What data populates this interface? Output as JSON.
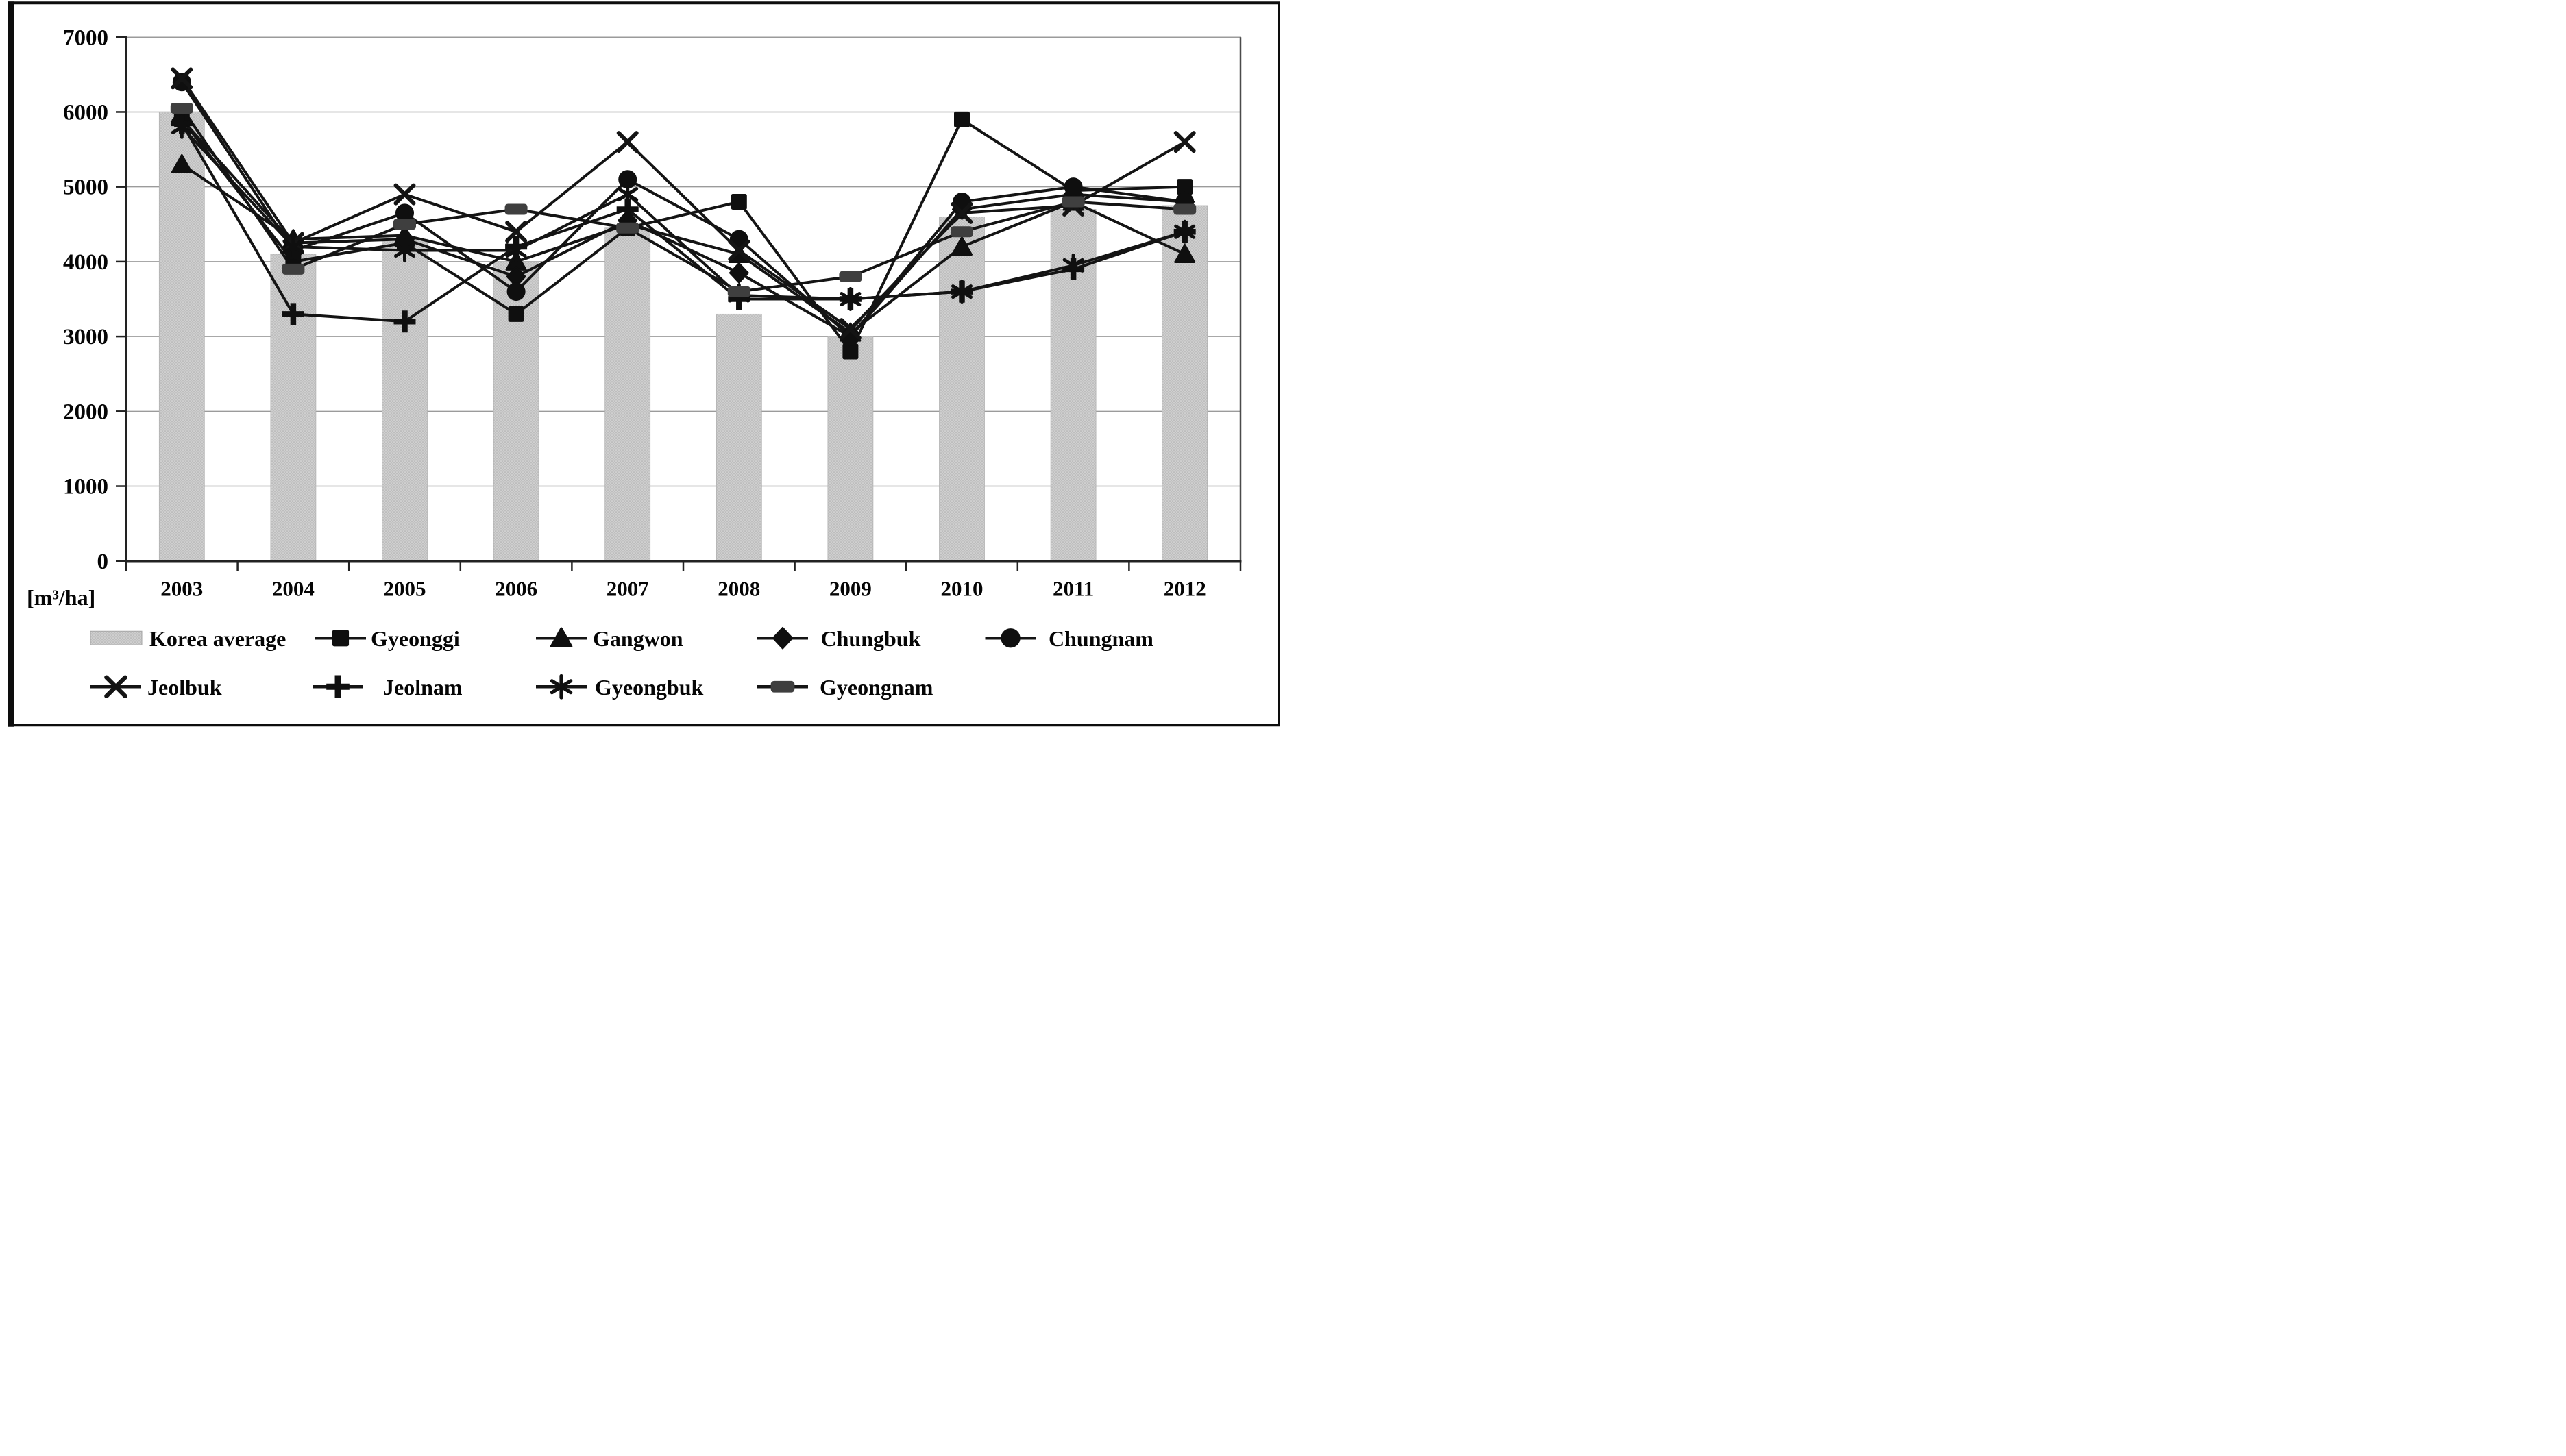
{
  "chart_data": {
    "type": "bar+line",
    "title": "",
    "unit_label": "[m³/ha]",
    "categories": [
      "2003",
      "2004",
      "2005",
      "2006",
      "2007",
      "2008",
      "2009",
      "2010",
      "2011",
      "2012"
    ],
    "ylim": [
      0,
      7000
    ],
    "yticks": [
      0,
      1000,
      2000,
      3000,
      4000,
      5000,
      6000,
      7000
    ],
    "grid": true,
    "legend_position": "bottom",
    "bar_series": {
      "name": "Korea average",
      "values": [
        6000,
        4100,
        4300,
        4000,
        4450,
        3300,
        3000,
        4600,
        4700,
        4750
      ]
    },
    "line_series": [
      {
        "name": "Gyeonggi",
        "marker": "square",
        "values": [
          5900,
          4000,
          4250,
          3300,
          4450,
          4800,
          2800,
          5900,
          4950,
          5000
        ]
      },
      {
        "name": "Gangwon",
        "marker": "triangle",
        "values": [
          5300,
          4300,
          4350,
          4000,
          4500,
          4100,
          3050,
          4200,
          4800,
          4100
        ]
      },
      {
        "name": "Chungbuk",
        "marker": "diamond",
        "values": [
          5900,
          4250,
          4300,
          3800,
          4550,
          3850,
          3000,
          4700,
          4900,
          4800
        ]
      },
      {
        "name": "Chungnam",
        "marker": "circle",
        "values": [
          6400,
          4150,
          4650,
          3600,
          5100,
          4300,
          3000,
          4800,
          5000,
          4800
        ]
      },
      {
        "name": "Jeolbuk",
        "marker": "x",
        "values": [
          6450,
          4250,
          4900,
          4400,
          5600,
          4150,
          3100,
          4650,
          4750,
          5600
        ]
      },
      {
        "name": "Jeolnam",
        "marker": "plus",
        "values": [
          5850,
          3300,
          3200,
          4200,
          4700,
          3500,
          3500,
          3600,
          3900,
          4400
        ]
      },
      {
        "name": "Gyeongbuk",
        "marker": "asterisk",
        "values": [
          5800,
          4200,
          4150,
          4150,
          4900,
          3550,
          3500,
          3600,
          3950,
          4400
        ]
      },
      {
        "name": "Gyeongnam",
        "marker": "dash",
        "values": [
          6050,
          3900,
          4500,
          4700,
          4450,
          3600,
          3800,
          4400,
          4800,
          4700
        ]
      }
    ],
    "legend_rows": [
      [
        "Korea average",
        "Gyeonggi",
        "Gangwon",
        "Chungbuk",
        "Chungnam"
      ],
      [
        "Jeolbuk",
        "Jeolnam",
        "Gyeongbuk",
        "Gyeongnam"
      ]
    ]
  },
  "colors": {
    "line": "#141414",
    "marker_fill": "#0f0f0f",
    "dash_marker_fill": "#3f3f3f",
    "bar_fill": "#d0d0d0",
    "bar_dot": "#bdbdbd",
    "grid": "#9b9b9b",
    "axis": "#222222",
    "text": "#050505",
    "border": "#0d0d0d",
    "background": "#ffffff"
  }
}
